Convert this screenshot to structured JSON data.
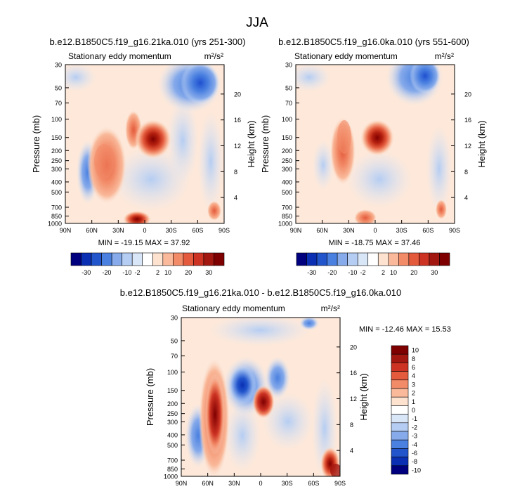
{
  "chart_data": {
    "type": "heatmap",
    "title": "JJA",
    "panels": [
      {
        "id": "p1",
        "title": "b.e12.B1850C5.f19_g16.21ka.010 (yrs 251-300)",
        "subtitle_left": "Stationary eddy momentum",
        "units": "m²/s²",
        "ylabel": "Pressure (mb)",
        "ylabel_right": "Height (km)",
        "xlim": [
          90,
          -90
        ],
        "ylim": [
          1000,
          30
        ],
        "xticks": [
          "90N",
          "60N",
          "30N",
          "0",
          "30S",
          "60S",
          "90S"
        ],
        "yticks": [
          "30",
          "50",
          "70",
          "100",
          "150",
          "200",
          "250",
          "300",
          "400",
          "500",
          "700",
          "850",
          "1000"
        ],
        "height_ticks": [
          "20",
          "16",
          "12",
          "8",
          "4"
        ],
        "stats": "MIN = -19.15  MAX = 37.92"
      },
      {
        "id": "p2",
        "title": "b.e12.B1850C5.f19_g16.0ka.010 (yrs 551-600)",
        "subtitle_left": "Stationary eddy momentum",
        "units": "m²/s²",
        "ylabel": "Pressure (mb)",
        "ylabel_right": "Height (km)",
        "xlim": [
          90,
          -90
        ],
        "ylim": [
          1000,
          30
        ],
        "xticks": [
          "90N",
          "60N",
          "30N",
          "0",
          "30S",
          "60S",
          "90S"
        ],
        "yticks": [
          "30",
          "50",
          "70",
          "100",
          "150",
          "200",
          "250",
          "300",
          "400",
          "500",
          "700",
          "850",
          "1000"
        ],
        "height_ticks": [
          "20",
          "16",
          "12",
          "8",
          "4"
        ],
        "stats": "MIN = -18.75  MAX = 37.46"
      },
      {
        "id": "p3",
        "title": "b.e12.B1850C5.f19_g16.21ka.010 - b.e12.B1850C5.f19_g16.0ka.010",
        "subtitle_left": "Stationary eddy momentum",
        "units": "m²/s²",
        "ylabel": "Pressure (mb)",
        "ylabel_right": "Height (km)",
        "xlim": [
          90,
          -90
        ],
        "ylim": [
          1000,
          30
        ],
        "xticks": [
          "90N",
          "60N",
          "30N",
          "0",
          "30S",
          "60S",
          "90S"
        ],
        "yticks": [
          "30",
          "50",
          "70",
          "100",
          "150",
          "200",
          "250",
          "300",
          "400",
          "500",
          "700",
          "850",
          "1000"
        ],
        "height_ticks": [
          "20",
          "16",
          "12",
          "8",
          "4"
        ],
        "stats": "MIN = -12.46  MAX = 15.53"
      }
    ],
    "colorbar_top": {
      "labels": [
        "-30",
        "-20",
        "-10",
        "-2",
        "2",
        "10",
        "20",
        "30"
      ],
      "colors": [
        "#00007f",
        "#0a2fb3",
        "#2255cc",
        "#4a80e0",
        "#86aaea",
        "#b5cdf2",
        "#d9e6f8",
        "#ffffff",
        "#fde2d0",
        "#f9b99a",
        "#f28b68",
        "#e35a3c",
        "#cc3322",
        "#a31711",
        "#7f0000"
      ]
    },
    "colorbar_diff": {
      "labels": [
        "10",
        "8",
        "6",
        "4",
        "3",
        "2",
        "1",
        "0",
        "-1",
        "-2",
        "-3",
        "-4",
        "-6",
        "-8",
        "-10"
      ],
      "colors": [
        "#7f0000",
        "#a31711",
        "#cc3322",
        "#e35a3c",
        "#f28b68",
        "#f9b99a",
        "#fde2d0",
        "#ffffff",
        "#d9e6f8",
        "#b5cdf2",
        "#86aaea",
        "#4a80e0",
        "#2255cc",
        "#0a2fb3",
        "#00007f"
      ]
    }
  }
}
